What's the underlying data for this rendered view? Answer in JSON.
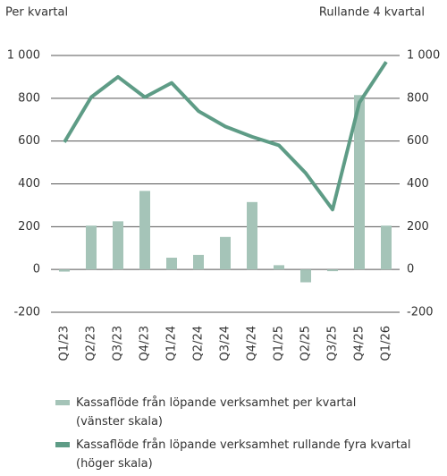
{
  "chart_data": {
    "type": "bar_line",
    "left_axis_label": "Per kvartal",
    "right_axis_label": "Rullande 4 kvartal",
    "categories": [
      "Q1/23",
      "Q2/23",
      "Q3/23",
      "Q4/23",
      "Q1/24",
      "Q2/24",
      "Q3/24",
      "Q4/24",
      "Q1/25",
      "Q2/25",
      "Q3/25",
      "Q4/25",
      "Q1/26"
    ],
    "series": [
      {
        "name": "Kassaflöde från löpande verksamhet per kvartal (vänster skala)",
        "type": "bar",
        "color": "#a5c4b8",
        "values": [
          -10,
          205,
          225,
          367,
          55,
          68,
          152,
          315,
          20,
          -60,
          -8,
          815,
          205
        ]
      },
      {
        "name": "Kassaflöde från löpande verksamhet rullande fyra kvartal (höger skala)",
        "type": "line",
        "axis": "y2",
        "color": "#5e9c86",
        "values": [
          595,
          805,
          900,
          805,
          872,
          740,
          668,
          620,
          580,
          450,
          280,
          780,
          970
        ]
      }
    ],
    "ylim": [
      -200,
      1000
    ],
    "yticks": [
      {
        "value": 1000,
        "label": "1 000"
      },
      800,
      600,
      400,
      200,
      0,
      -200
    ],
    "y2lim": [
      -200,
      1000
    ],
    "y2ticks": [
      {
        "value": 1000,
        "label": "1 000"
      },
      800,
      600,
      400,
      200,
      0,
      -200
    ],
    "grid": true
  }
}
